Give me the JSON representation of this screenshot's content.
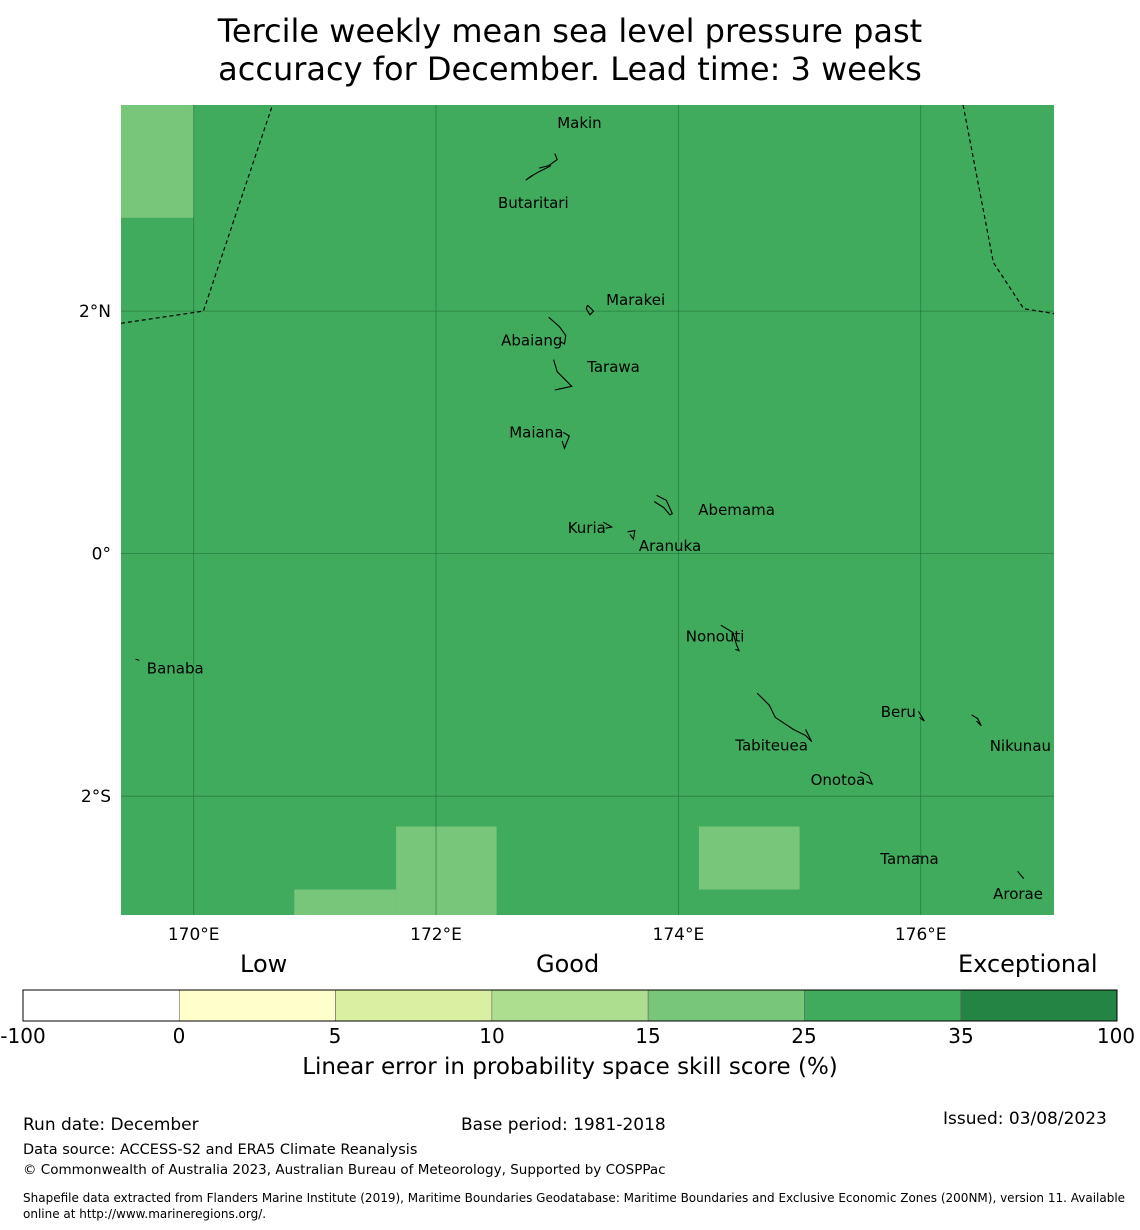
{
  "title": {
    "line1": "Tercile weekly mean sea level pressure past",
    "line2": "accuracy for December. Lead time: 3 weeks"
  },
  "map": {
    "background_color": "#41ab5d",
    "lon_ticks": [
      "170°E",
      "172°E",
      "174°E",
      "176°E"
    ],
    "lat_ticks": [
      "2°N",
      "0°",
      "2°S"
    ],
    "extent": {
      "lon_min": 169.4,
      "lon_max": 177.1,
      "lat_min": -2.98,
      "lat_max": 3.7
    },
    "gridlines": {
      "lons": [
        170,
        172,
        174,
        176
      ],
      "lats": [
        2,
        0,
        -2
      ]
    },
    "highlight_cells": [
      {
        "lon0": 169.4,
        "lon1": 170.0,
        "lat0": 2.77,
        "lat1": 3.7,
        "color": "#78c679"
      },
      {
        "lon0": 171.67,
        "lon1": 172.5,
        "lat0": -2.98,
        "lat1": -2.25,
        "color": "#78c679"
      },
      {
        "lon0": 170.83,
        "lon1": 171.67,
        "lat0": -2.98,
        "lat1": -2.77,
        "color": "#78c679"
      },
      {
        "lon0": 174.17,
        "lon1": 175.0,
        "lat0": -2.77,
        "lat1": -2.25,
        "color": "#78c679"
      }
    ],
    "eez_boundaries": [
      [
        [
          169.4,
          1.9
        ],
        [
          170.08,
          2.0
        ],
        [
          170.65,
          3.7
        ]
      ],
      [
        [
          176.35,
          3.7
        ],
        [
          176.6,
          2.4
        ],
        [
          176.85,
          2.02
        ],
        [
          177.1,
          1.98
        ]
      ]
    ],
    "islands": [
      {
        "name": "Makin",
        "lon": 173.0,
        "lat": 3.38,
        "outline": [
          [
            172.98,
            3.3
          ],
          [
            173.0,
            3.25
          ],
          [
            172.93,
            3.2
          ],
          [
            172.85,
            3.18
          ]
        ]
      },
      {
        "name": "Butaritari",
        "lon": 172.8,
        "lat": 3.05,
        "outline": [
          [
            172.95,
            3.2
          ],
          [
            172.85,
            3.15
          ],
          [
            172.78,
            3.11
          ],
          [
            172.74,
            3.08
          ],
          [
            172.8,
            3.12
          ]
        ]
      },
      {
        "name": "Marakei",
        "lon": 173.28,
        "lat": 2.0,
        "outline": [
          [
            173.25,
            2.05
          ],
          [
            173.3,
            2.0
          ],
          [
            173.27,
            1.97
          ],
          [
            173.24,
            2.02
          ],
          [
            173.25,
            2.05
          ]
        ]
      },
      {
        "name": "Abaiang",
        "lon": 172.95,
        "lat": 1.85,
        "outline": [
          [
            172.93,
            1.95
          ],
          [
            173.02,
            1.87
          ],
          [
            173.07,
            1.8
          ],
          [
            173.06,
            1.73
          ],
          [
            173.02,
            1.75
          ]
        ]
      },
      {
        "name": "Tarawa",
        "lon": 173.0,
        "lat": 1.4,
        "outline": [
          [
            172.97,
            1.6
          ],
          [
            173.0,
            1.5
          ],
          [
            173.05,
            1.45
          ],
          [
            173.12,
            1.38
          ],
          [
            173.03,
            1.36
          ],
          [
            172.98,
            1.35
          ]
        ]
      },
      {
        "name": "Maiana",
        "lon": 173.0,
        "lat": 0.95,
        "outline": [
          [
            173.05,
            1.0
          ],
          [
            173.1,
            0.97
          ],
          [
            173.06,
            0.87
          ],
          [
            173.04,
            0.93
          ]
        ]
      },
      {
        "name": "Abemama",
        "lon": 173.9,
        "lat": 0.4,
        "outline": [
          [
            173.82,
            0.48
          ],
          [
            173.9,
            0.44
          ],
          [
            173.95,
            0.33
          ],
          [
            173.93,
            0.32
          ],
          [
            173.88,
            0.38
          ],
          [
            173.8,
            0.43
          ]
        ]
      },
      {
        "name": "Kuria",
        "lon": 173.4,
        "lat": 0.23,
        "outline": [
          [
            173.38,
            0.26
          ],
          [
            173.45,
            0.22
          ],
          [
            173.4,
            0.21
          ]
        ]
      },
      {
        "name": "Aranuka",
        "lon": 173.6,
        "lat": 0.17,
        "outline": [
          [
            173.58,
            0.18
          ],
          [
            173.64,
            0.19
          ],
          [
            173.63,
            0.12
          ],
          [
            173.6,
            0.16
          ]
        ]
      },
      {
        "name": "Nonouti",
        "lon": 174.4,
        "lat": -0.65,
        "outline": [
          [
            174.35,
            -0.59
          ],
          [
            174.45,
            -0.65
          ],
          [
            174.48,
            -0.75
          ],
          [
            174.5,
            -0.8
          ],
          [
            174.47,
            -0.79
          ]
        ]
      },
      {
        "name": "Banaba",
        "lon": 169.53,
        "lat": -0.88,
        "outline": [
          [
            169.52,
            -0.87
          ],
          [
            169.55,
            -0.88
          ]
        ]
      },
      {
        "name": "Tabiteuea",
        "lon": 174.8,
        "lat": -1.35,
        "outline": [
          [
            174.65,
            -1.15
          ],
          [
            174.75,
            -1.25
          ],
          [
            174.8,
            -1.35
          ],
          [
            174.95,
            -1.45
          ],
          [
            175.05,
            -1.5
          ],
          [
            175.1,
            -1.55
          ],
          [
            175.05,
            -1.45
          ]
        ]
      },
      {
        "name": "Beru",
        "lon": 176.0,
        "lat": -1.33,
        "outline": [
          [
            175.98,
            -1.3
          ],
          [
            176.0,
            -1.33
          ],
          [
            176.03,
            -1.38
          ],
          [
            175.99,
            -1.35
          ]
        ]
      },
      {
        "name": "Nikunau",
        "lon": 176.47,
        "lat": -1.37,
        "outline": [
          [
            176.42,
            -1.33
          ],
          [
            176.47,
            -1.36
          ],
          [
            176.5,
            -1.42
          ],
          [
            176.46,
            -1.38
          ]
        ]
      },
      {
        "name": "Onotoa",
        "lon": 175.57,
        "lat": -1.85,
        "outline": [
          [
            175.5,
            -1.8
          ],
          [
            175.57,
            -1.83
          ],
          [
            175.6,
            -1.9
          ],
          [
            175.55,
            -1.88
          ]
        ]
      },
      {
        "name": "Tamana",
        "lon": 175.98,
        "lat": -2.5,
        "outline": [
          [
            175.97,
            -2.49
          ],
          [
            176.0,
            -2.5
          ]
        ]
      },
      {
        "name": "Arorae",
        "lon": 176.82,
        "lat": -2.65,
        "outline": [
          [
            176.8,
            -2.62
          ],
          [
            176.85,
            -2.68
          ]
        ]
      }
    ]
  },
  "colorbar": {
    "categories": {
      "low": "Low",
      "good": "Good",
      "exceptional": "Exceptional"
    },
    "bins": [
      {
        "from": "-100",
        "to": "0",
        "color": "#ffffff"
      },
      {
        "from": "0",
        "to": "5",
        "color": "#ffffcc"
      },
      {
        "from": "5",
        "to": "10",
        "color": "#d9f0a3"
      },
      {
        "from": "10",
        "to": "15",
        "color": "#addd8e"
      },
      {
        "from": "15",
        "to": "25",
        "color": "#78c679"
      },
      {
        "from": "25",
        "to": "35",
        "color": "#41ab5d"
      },
      {
        "from": "35",
        "to": "100",
        "color": "#238443"
      }
    ],
    "ticks": [
      "-100",
      "0",
      "5",
      "10",
      "15",
      "25",
      "35",
      "100"
    ],
    "label": "Linear error in probability space skill score (%)"
  },
  "footer": {
    "run_date": "Run date: December",
    "base_period": "Base period: 1981-2018",
    "issued": "Issued: 03/08/2023",
    "data_source": "Data source: ACCESS-S2 and ERA5 Climate Reanalysis",
    "copyright": "© Commonwealth of Australia 2023, Australian Bureau of Meteorology, Supported by COSPPac",
    "shapefile_line1": "Shapefile data extracted from Flanders Marine Institute (2019), Maritime Boundaries Geodatabase: Maritime Boundaries and Exclusive Economic Zones (200NM), version 11. Available",
    "shapefile_line2": "online at http://www.marineregions.org/."
  }
}
